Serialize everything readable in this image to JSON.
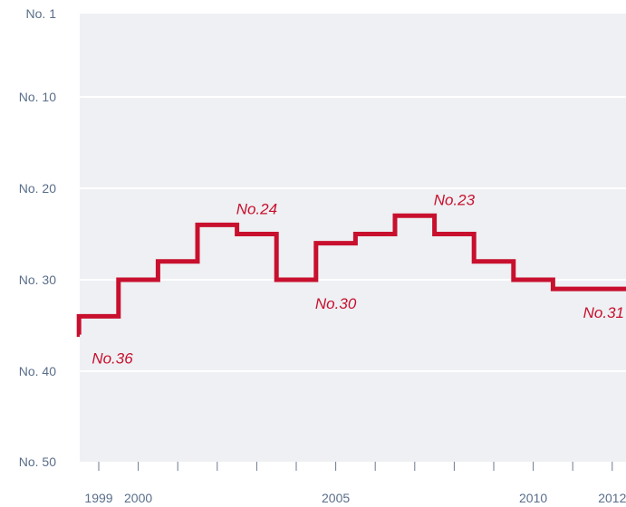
{
  "chart_data": {
    "type": "line",
    "step": true,
    "title": "",
    "xlabel": "",
    "ylabel": "",
    "y_inverted": true,
    "ylim": [
      1,
      50
    ],
    "xlim": [
      1998.5,
      2012.5
    ],
    "grid": true,
    "y_ticks": [
      {
        "value": 1,
        "label": "No. 1"
      },
      {
        "value": 10,
        "label": "No. 10"
      },
      {
        "value": 20,
        "label": "No. 20"
      },
      {
        "value": 30,
        "label": "No. 30"
      },
      {
        "value": 40,
        "label": "No. 40"
      },
      {
        "value": 50,
        "label": "No. 50"
      }
    ],
    "x_ticks": [
      1999,
      2000,
      2001,
      2002,
      2003,
      2004,
      2005,
      2006,
      2007,
      2008,
      2009,
      2010,
      2011,
      2012
    ],
    "x_tick_labels": [
      {
        "value": 1999,
        "label": "1999"
      },
      {
        "value": 2000,
        "label": "2000"
      },
      {
        "value": 2005,
        "label": "2005"
      },
      {
        "value": 2010,
        "label": "2010"
      },
      {
        "value": 2012,
        "label": "2012"
      }
    ],
    "series": [
      {
        "x": [
          1998,
          1999,
          2000,
          2001,
          2002,
          2003,
          2004,
          2005,
          2006,
          2007,
          2008,
          2009,
          2010,
          2011,
          2012
        ],
        "values": [
          36,
          34,
          30,
          28,
          24,
          25,
          30,
          26,
          25,
          23,
          25,
          28,
          30,
          31,
          31
        ],
        "color": "#c8102e"
      }
    ],
    "annotations": [
      {
        "x": 1998,
        "value": 36,
        "text": "No.36",
        "pos": "below"
      },
      {
        "x": 2003,
        "value": 24,
        "text": "No.24",
        "pos": "above"
      },
      {
        "x": 2005,
        "value": 30,
        "text": "No.30",
        "pos": "below"
      },
      {
        "x": 2008,
        "value": 23,
        "text": "No.23",
        "pos": "above"
      },
      {
        "x": 2012,
        "value": 31,
        "text": "No.31",
        "pos": "below"
      }
    ],
    "colors": {
      "plot_background": "#eef0f3",
      "gridline": "#ffffff",
      "line": "#c8102e",
      "axis_text": "#5a6e8a",
      "tick": "#6b7a90"
    }
  }
}
